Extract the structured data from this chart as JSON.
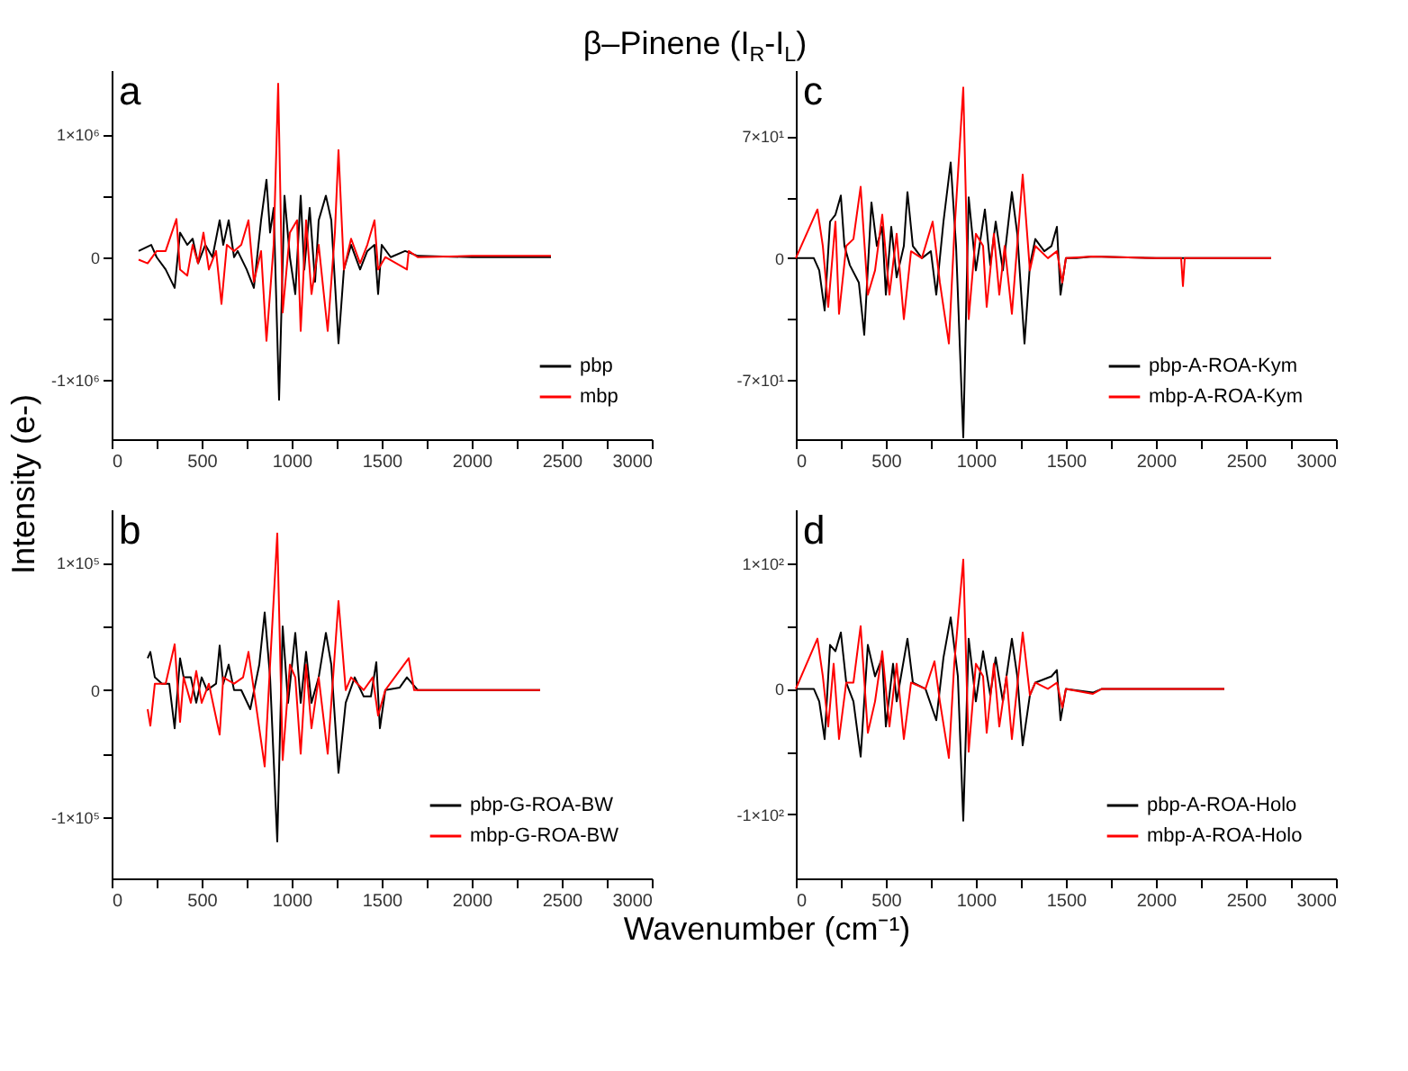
{
  "chart_data": [
    {
      "type": "line",
      "title": "β–Pinene (I$_{R}$-I$_{L}$)",
      "ylabel": "Intensity (e-)",
      "annotations": [
        "a"
      ],
      "legend": "bottom right",
      "grid": false,
      "xlim": [
        0,
        3000
      ],
      "xticks": [
        0,
        {
          "value": 250,
          "label": null
        },
        500,
        {
          "value": 750,
          "label": null
        },
        1000,
        {
          "value": 1250,
          "label": null
        },
        1500,
        {
          "value": 1750,
          "label": null
        },
        2000,
        {
          "value": 2250,
          "label": null
        },
        2500,
        {
          "value": 2750,
          "label": null
        },
        3000
      ],
      "ylim": [
        -1480000,
        1520000
      ],
      "yticks": [
        {
          "value": -1000000,
          "label": "-1×10⁶"
        },
        {
          "value": -500000,
          "label": null
        },
        0,
        {
          "value": 500000,
          "label": null
        },
        {
          "value": 1000000,
          "label": "1×10⁶"
        }
      ],
      "series": [
        {
          "name": "pbp",
          "color": "#000000",
          "x": [
            150,
            220,
            250,
            300,
            350,
            380,
            420,
            450,
            480,
            520,
            560,
            600,
            620,
            650,
            680,
            700,
            750,
            790,
            830,
            860,
            880,
            900,
            930,
            960,
            990,
            1020,
            1050,
            1070,
            1100,
            1130,
            1150,
            1190,
            1220,
            1260,
            1290,
            1330,
            1380,
            1420,
            1460,
            1480,
            1500,
            1550,
            1630,
            1700,
            2000,
            2440
          ],
          "values": [
            50000,
            100000,
            0,
            -100000,
            -250000,
            200000,
            100000,
            150000,
            -50000,
            100000,
            0,
            300000,
            100000,
            300000,
            0,
            50000,
            -100000,
            -250000,
            300000,
            630000,
            200000,
            400000,
            -1160000,
            500000,
            0,
            -300000,
            500000,
            -100000,
            400000,
            -200000,
            300000,
            500000,
            300000,
            -700000,
            -100000,
            100000,
            -100000,
            50000,
            100000,
            -300000,
            100000,
            0,
            50000,
            10000,
            0,
            0
          ]
        },
        {
          "name": "mbp",
          "color": "#ff0000",
          "x": [
            150,
            200,
            250,
            300,
            360,
            380,
            420,
            450,
            480,
            510,
            540,
            580,
            610,
            640,
            680,
            720,
            760,
            790,
            830,
            860,
            900,
            925,
            950,
            990,
            1030,
            1050,
            1080,
            1110,
            1150,
            1200,
            1240,
            1260,
            1290,
            1330,
            1380,
            1420,
            1460,
            1480,
            1520,
            1640,
            1650,
            1700,
            2000,
            2440
          ],
          "values": [
            -20000,
            -50000,
            50000,
            50000,
            310000,
            -100000,
            -150000,
            100000,
            -50000,
            200000,
            -100000,
            50000,
            -380000,
            100000,
            50000,
            100000,
            300000,
            -200000,
            50000,
            -680000,
            100000,
            1410000,
            -450000,
            200000,
            300000,
            -600000,
            300000,
            -300000,
            100000,
            -600000,
            200000,
            870000,
            -100000,
            150000,
            -50000,
            100000,
            300000,
            -100000,
            0,
            -100000,
            50000,
            0,
            10000,
            10000
          ]
        }
      ]
    },
    {
      "type": "line",
      "annotations": [
        "c"
      ],
      "legend": "bottom right",
      "grid": false,
      "xlim": [
        0,
        3000
      ],
      "xticks": [
        0,
        {
          "value": 250,
          "label": null
        },
        500,
        {
          "value": 750,
          "label": null
        },
        1000,
        {
          "value": 1250,
          "label": null
        },
        1500,
        {
          "value": 1750,
          "label": null
        },
        2000,
        {
          "value": 2250,
          "label": null
        },
        2500,
        {
          "value": 2750,
          "label": null
        },
        3000
      ],
      "ylim": [
        -104,
        108
      ],
      "yticks": [
        {
          "value": -70,
          "label": "-7×10¹"
        },
        {
          "value": -35,
          "label": null
        },
        0,
        {
          "value": 35,
          "label": null
        },
        {
          "value": 70,
          "label": "7×10¹"
        }
      ],
      "series": [
        {
          "name": "pbp-A-ROA-Kym",
          "color": "#000000",
          "x": [
            0,
            100,
            130,
            160,
            190,
            220,
            250,
            270,
            300,
            350,
            380,
            420,
            450,
            480,
            500,
            530,
            560,
            600,
            620,
            650,
            700,
            750,
            780,
            820,
            860,
            890,
            930,
            960,
            1000,
            1050,
            1080,
            1110,
            1150,
            1200,
            1230,
            1270,
            1300,
            1330,
            1380,
            1420,
            1450,
            1470,
            1500,
            1560,
            1650,
            2000,
            2640
          ],
          "values": [
            0,
            0,
            -7,
            -30,
            21,
            25,
            36,
            7,
            -4,
            -14,
            -44,
            32,
            7,
            18,
            -21,
            18,
            -11,
            7,
            38,
            7,
            0,
            4,
            -21,
            21,
            55,
            7,
            -103,
            35,
            -7,
            28,
            -4,
            21,
            -7,
            38,
            14,
            -49,
            -4,
            11,
            4,
            7,
            18,
            -21,
            0,
            0,
            1,
            0,
            0
          ]
        },
        {
          "name": "mbp-A-ROA-Kym",
          "color": "#ff0000",
          "x": [
            0,
            120,
            150,
            180,
            220,
            240,
            280,
            320,
            360,
            400,
            440,
            480,
            520,
            560,
            600,
            640,
            700,
            760,
            800,
            850,
            880,
            930,
            960,
            1000,
            1040,
            1060,
            1100,
            1130,
            1160,
            1200,
            1260,
            1300,
            1330,
            1400,
            1450,
            1480,
            1500,
            1650,
            2000,
            2140,
            2150,
            2160,
            2640
          ],
          "values": [
            0,
            28,
            7,
            -28,
            21,
            -32,
            7,
            11,
            41,
            -21,
            -7,
            25,
            -21,
            14,
            -35,
            4,
            0,
            21,
            -14,
            -49,
            14,
            98,
            -35,
            14,
            7,
            -28,
            14,
            -21,
            7,
            -32,
            48,
            -7,
            7,
            0,
            4,
            -14,
            0,
            1,
            0,
            0,
            -16,
            0,
            0
          ]
        }
      ]
    },
    {
      "type": "line",
      "annotations": [
        "b"
      ],
      "legend": "bottom right",
      "grid": false,
      "xlim": [
        0,
        3000
      ],
      "xticks": [
        0,
        {
          "value": 250,
          "label": null
        },
        500,
        {
          "value": 750,
          "label": null
        },
        1000,
        {
          "value": 1250,
          "label": null
        },
        1500,
        {
          "value": 1750,
          "label": null
        },
        2000,
        {
          "value": 2250,
          "label": null
        },
        2500,
        {
          "value": 2750,
          "label": null
        },
        3000
      ],
      "ylim": [
        -148000,
        142000
      ],
      "yticks": [
        {
          "value": -100000,
          "label": "-1×10⁵"
        },
        {
          "value": -50000,
          "label": null
        },
        0,
        {
          "value": 50000,
          "label": null
        },
        {
          "value": 100000,
          "label": "1×10⁵"
        }
      ],
      "series": [
        {
          "name": "pbp-G-ROA-BW",
          "color": "#000000",
          "x": [
            200,
            215,
            240,
            280,
            320,
            350,
            380,
            400,
            440,
            470,
            500,
            530,
            580,
            600,
            620,
            650,
            680,
            720,
            770,
            820,
            850,
            880,
            920,
            950,
            980,
            1020,
            1050,
            1080,
            1110,
            1150,
            1190,
            1220,
            1260,
            1300,
            1350,
            1400,
            1440,
            1470,
            1490,
            1520,
            1600,
            1640,
            1700,
            2000,
            2380
          ],
          "values": [
            25000,
            30000,
            10000,
            5000,
            5000,
            -30000,
            25000,
            10000,
            10000,
            -10000,
            10000,
            0,
            5000,
            35000,
            5000,
            20000,
            0,
            0,
            -15000,
            20000,
            61000,
            10000,
            -119000,
            50000,
            -10000,
            45000,
            -10000,
            30000,
            -10000,
            10000,
            45000,
            20000,
            -65000,
            -10000,
            10000,
            -5000,
            -5000,
            22000,
            -30000,
            0,
            2000,
            10000,
            0,
            0,
            0
          ]
        },
        {
          "name": "mbp-G-ROA-BW",
          "color": "#ff0000",
          "x": [
            200,
            215,
            240,
            300,
            350,
            380,
            400,
            440,
            470,
            500,
            540,
            600,
            620,
            680,
            730,
            760,
            800,
            850,
            880,
            920,
            950,
            990,
            1020,
            1050,
            1080,
            1110,
            1150,
            1200,
            1260,
            1300,
            1330,
            1400,
            1450,
            1480,
            1520,
            1650,
            1680,
            2000,
            2380
          ],
          "values": [
            -15000,
            -28000,
            5000,
            5000,
            36000,
            -25000,
            10000,
            -10000,
            15000,
            -10000,
            5000,
            -35000,
            10000,
            5000,
            10000,
            30000,
            -10000,
            -60000,
            20000,
            123000,
            -55000,
            20000,
            10000,
            -50000,
            20000,
            -30000,
            10000,
            -50000,
            70000,
            0,
            10000,
            0,
            10000,
            -20000,
            0,
            25000,
            0,
            0,
            0
          ]
        }
      ]
    },
    {
      "type": "line",
      "xlabel": "Wavenumber (cm⁻¹)",
      "annotations": [
        "d"
      ],
      "legend": "bottom right",
      "grid": false,
      "xlim": [
        0,
        3000
      ],
      "xticks": [
        0,
        {
          "value": 250,
          "label": null
        },
        500,
        {
          "value": 750,
          "label": null
        },
        1000,
        {
          "value": 1250,
          "label": null
        },
        1500,
        {
          "value": 1750,
          "label": null
        },
        2000,
        {
          "value": 2250,
          "label": null
        },
        2500,
        {
          "value": 2750,
          "label": null
        },
        3000
      ],
      "ylim": [
        -151,
        143
      ],
      "yticks": [
        {
          "value": -100,
          "label": "-1×10²"
        },
        {
          "value": -50,
          "label": null
        },
        0,
        {
          "value": 50,
          "label": null
        },
        {
          "value": 100,
          "label": "1×10²"
        }
      ],
      "series": [
        {
          "name": "pbp-A-ROA-Holo",
          "color": "#000000",
          "x": [
            0,
            100,
            130,
            160,
            190,
            220,
            250,
            280,
            320,
            360,
            400,
            440,
            480,
            500,
            540,
            560,
            620,
            650,
            720,
            780,
            820,
            860,
            900,
            930,
            960,
            1000,
            1040,
            1080,
            1110,
            1150,
            1200,
            1230,
            1260,
            1300,
            1330,
            1420,
            1450,
            1470,
            1500,
            1650,
            1700,
            2380
          ],
          "values": [
            0,
            0,
            -10,
            -40,
            35,
            30,
            45,
            5,
            -10,
            -54,
            35,
            10,
            25,
            -30,
            20,
            -10,
            40,
            5,
            0,
            -25,
            25,
            57,
            10,
            -105,
            40,
            -10,
            30,
            -5,
            25,
            -10,
            40,
            10,
            -45,
            -5,
            5,
            10,
            15,
            -25,
            0,
            -3,
            0,
            0
          ]
        },
        {
          "name": "mbp-A-ROA-Holo",
          "color": "#ff0000",
          "x": [
            0,
            120,
            150,
            180,
            210,
            240,
            280,
            320,
            360,
            400,
            440,
            480,
            520,
            560,
            600,
            640,
            720,
            770,
            800,
            850,
            880,
            930,
            960,
            1000,
            1040,
            1060,
            1100,
            1130,
            1170,
            1200,
            1260,
            1300,
            1330,
            1400,
            1450,
            1480,
            1500,
            1650,
            1700,
            2380
          ],
          "values": [
            0,
            40,
            10,
            -30,
            20,
            -40,
            5,
            5,
            50,
            -35,
            -10,
            30,
            -30,
            20,
            -40,
            5,
            0,
            22,
            -10,
            -55,
            20,
            103,
            -50,
            20,
            10,
            -35,
            20,
            -30,
            10,
            -40,
            45,
            -5,
            5,
            0,
            5,
            -15,
            0,
            -4,
            0,
            0
          ]
        }
      ]
    }
  ]
}
